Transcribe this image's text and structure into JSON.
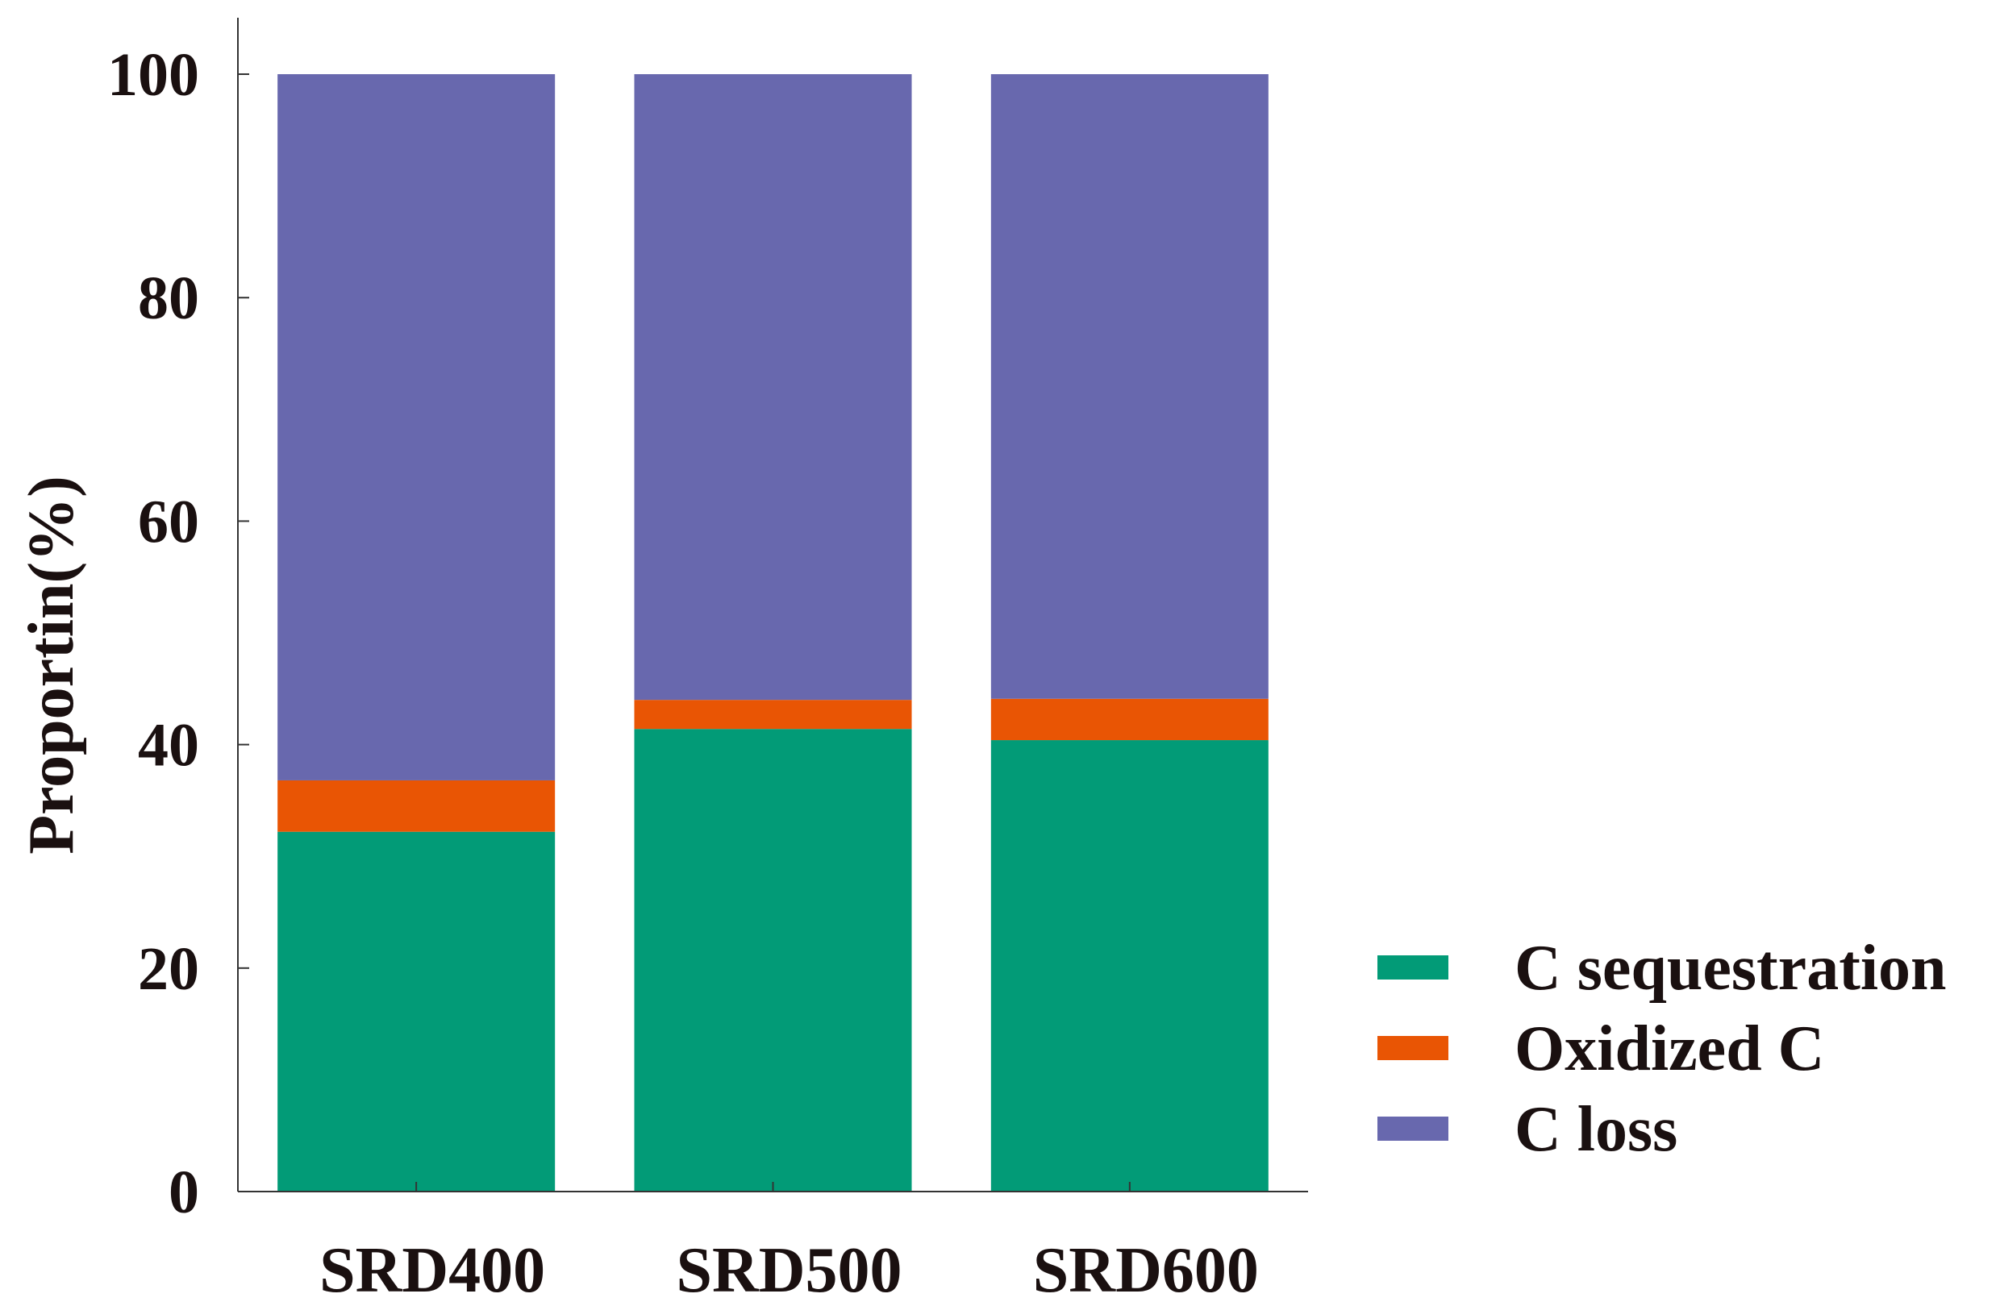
{
  "chart_data": {
    "type": "bar",
    "stacked": true,
    "categories": [
      "SRD400",
      "SRD500",
      "SRD600"
    ],
    "series": [
      {
        "name": "C sequestration",
        "color": "#029B77",
        "values": [
          32.2,
          41.4,
          40.4
        ]
      },
      {
        "name": "Oxidized C",
        "color": "#E95504",
        "values": [
          4.6,
          2.6,
          3.7
        ]
      },
      {
        "name": "C loss",
        "color": "#6868AE",
        "values": [
          63.2,
          56.0,
          55.9
        ]
      }
    ],
    "title": "",
    "xlabel": "",
    "ylabel": "Proportin(%)",
    "ylim": [
      0,
      100
    ],
    "yticks": [
      0,
      20,
      40,
      60,
      80,
      100
    ],
    "grid": false,
    "legend_position": "bottom-right"
  }
}
